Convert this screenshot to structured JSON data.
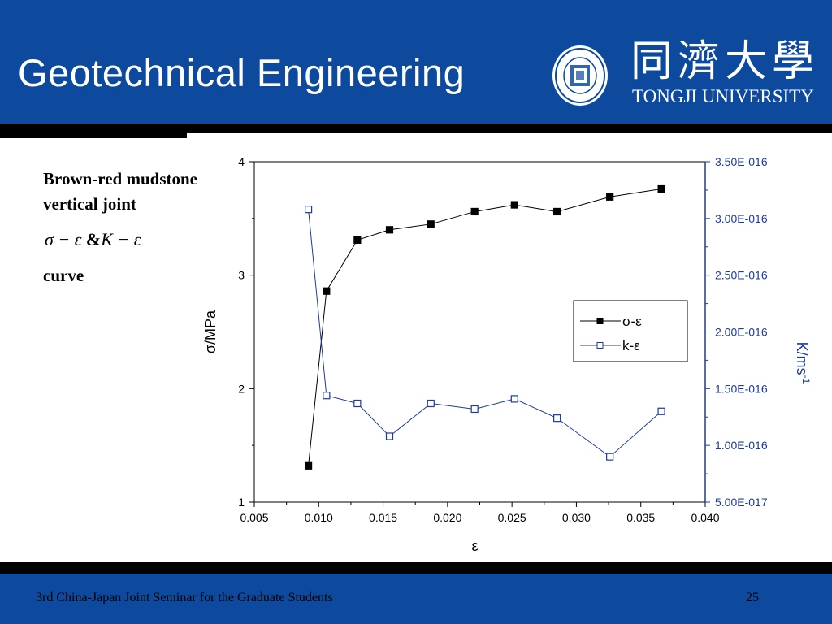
{
  "header": {
    "title": "Geotechnical Engineering",
    "logo_cn": "同濟大學",
    "logo_en": "TONGJI UNIVERSITY",
    "bg_color": "#0d4a9e"
  },
  "side": {
    "line1": "Brown-red mudstone",
    "line2": "vertical joint",
    "formula_sigma": "σ − ε",
    "formula_amp": "&",
    "formula_k": "K − ε",
    "line4": "curve"
  },
  "footer": {
    "text": "3rd China-Japan Joint Seminar for the Graduate Students",
    "page": "25"
  },
  "chart_data": {
    "type": "line",
    "xlabel": "ε",
    "ylabel": "σ/MPa",
    "y2label": "K/ms",
    "y2label_sup": "-1",
    "xlim": [
      0.005,
      0.04
    ],
    "ylim": [
      1,
      4
    ],
    "y2lim": [
      5e-17,
      3.5e-16
    ],
    "x_ticks": [
      "0.005",
      "0.010",
      "0.015",
      "0.020",
      "0.025",
      "0.030",
      "0.035",
      "0.040"
    ],
    "y_ticks": [
      "1",
      "2",
      "3",
      "4"
    ],
    "y2_ticks": [
      "5.00E-017",
      "1.00E-016",
      "1.50E-016",
      "2.00E-016",
      "2.50E-016",
      "3.00E-016",
      "3.50E-016"
    ],
    "legend_position": "right-middle",
    "series": [
      {
        "name": "σ-ε",
        "axis": "left",
        "color": "#000000",
        "marker": "filled-square",
        "x": [
          0.0092,
          0.0106,
          0.013,
          0.0155,
          0.0187,
          0.0221,
          0.0252,
          0.0285,
          0.0326,
          0.0366
        ],
        "y": [
          1.32,
          2.86,
          3.31,
          3.4,
          3.45,
          3.56,
          3.62,
          3.56,
          3.69,
          3.76
        ]
      },
      {
        "name": "k-ε",
        "axis": "right",
        "color": "#1f3a9e",
        "marker": "open-square",
        "x": [
          0.0092,
          0.0106,
          0.013,
          0.0155,
          0.0187,
          0.0221,
          0.0252,
          0.0285,
          0.0326,
          0.0366
        ],
        "y": [
          3.08e-16,
          1.44e-16,
          1.37e-16,
          1.08e-16,
          1.37e-16,
          1.32e-16,
          1.41e-16,
          1.24e-16,
          9e-17,
          1.3e-16
        ]
      }
    ]
  }
}
